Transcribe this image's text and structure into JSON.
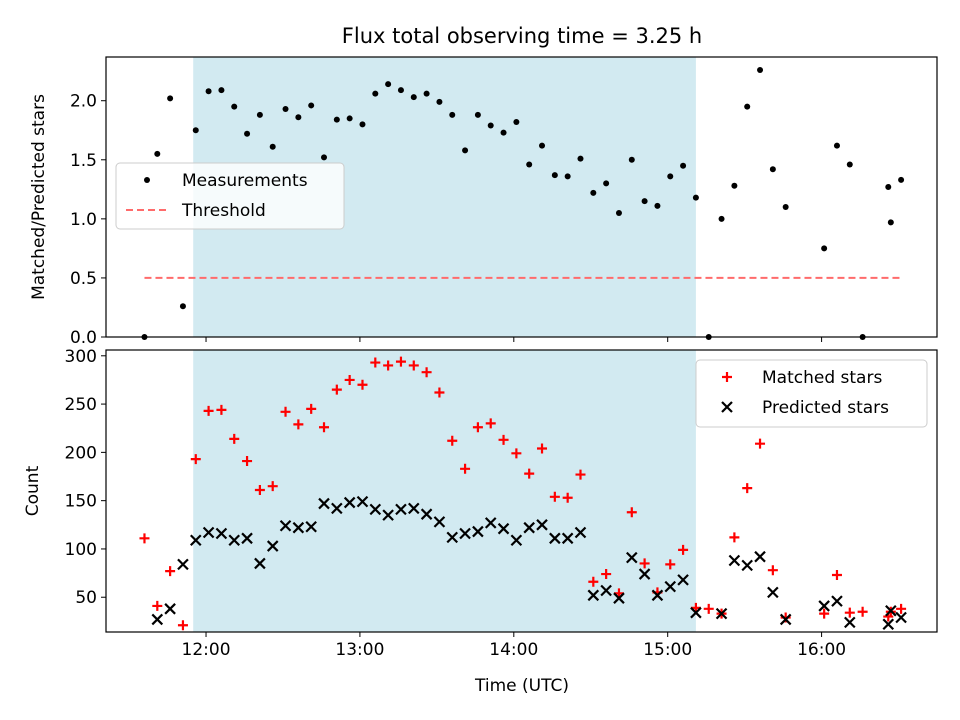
{
  "title": "Flux total observing time = 3.25 h",
  "xlabel": "Time (UTC)",
  "colors": {
    "measurement": "#000000",
    "threshold": "#ff6b6b",
    "span": "#add8e6",
    "matched": "#ff0000",
    "predicted": "#000000"
  },
  "chart_data": [
    {
      "type": "scatter",
      "ylabel": "Matched/Predicted stars",
      "ylim": [
        0,
        2.37
      ],
      "yticks": [
        "0.0",
        "0.5",
        "1.0",
        "1.5",
        "2.0"
      ],
      "xlim": [
        "11:21",
        "16:45"
      ],
      "xticks": [
        "12:00",
        "13:00",
        "14:00",
        "15:00",
        "16:00"
      ],
      "shaded_interval": [
        "11:55",
        "15:11"
      ],
      "legend_loc": "center-left",
      "series": [
        {
          "name": "Measurements",
          "marker": "dot",
          "points": [
            [
              "11:36",
              0.0
            ],
            [
              "11:41",
              1.55
            ],
            [
              "11:46",
              2.02
            ],
            [
              "11:51",
              0.26
            ],
            [
              "11:56",
              1.75
            ],
            [
              "12:01",
              2.08
            ],
            [
              "12:06",
              2.09
            ],
            [
              "12:11",
              1.95
            ],
            [
              "12:16",
              1.72
            ],
            [
              "12:21",
              1.88
            ],
            [
              "12:26",
              1.61
            ],
            [
              "12:31",
              1.93
            ],
            [
              "12:36",
              1.86
            ],
            [
              "12:41",
              1.96
            ],
            [
              "12:46",
              1.52
            ],
            [
              "12:51",
              1.84
            ],
            [
              "12:56",
              1.85
            ],
            [
              "13:01",
              1.8
            ],
            [
              "13:06",
              2.06
            ],
            [
              "13:11",
              2.14
            ],
            [
              "13:16",
              2.09
            ],
            [
              "13:21",
              2.03
            ],
            [
              "13:26",
              2.06
            ],
            [
              "13:31",
              1.99
            ],
            [
              "13:36",
              1.88
            ],
            [
              "13:41",
              1.58
            ],
            [
              "13:46",
              1.88
            ],
            [
              "13:51",
              1.79
            ],
            [
              "13:56",
              1.73
            ],
            [
              "14:01",
              1.82
            ],
            [
              "14:06",
              1.46
            ],
            [
              "14:11",
              1.62
            ],
            [
              "14:16",
              1.37
            ],
            [
              "14:21",
              1.36
            ],
            [
              "14:26",
              1.51
            ],
            [
              "14:31",
              1.22
            ],
            [
              "14:36",
              1.3
            ],
            [
              "14:41",
              1.05
            ],
            [
              "14:46",
              1.5
            ],
            [
              "14:51",
              1.15
            ],
            [
              "14:56",
              1.11
            ],
            [
              "15:01",
              1.36
            ],
            [
              "15:06",
              1.45
            ],
            [
              "15:11",
              1.18
            ],
            [
              "15:16",
              0.0
            ],
            [
              "15:21",
              1.0
            ],
            [
              "15:26",
              1.28
            ],
            [
              "15:31",
              1.95
            ],
            [
              "15:36",
              2.26
            ],
            [
              "15:41",
              1.42
            ],
            [
              "15:46",
              1.1
            ],
            [
              "16:01",
              0.75
            ],
            [
              "16:06",
              1.62
            ],
            [
              "16:11",
              1.46
            ],
            [
              "16:16",
              0.0
            ],
            [
              "16:26",
              1.27
            ],
            [
              "16:27",
              0.97
            ],
            [
              "16:31",
              1.33
            ]
          ]
        },
        {
          "name": "Threshold",
          "style": "dashed-line",
          "points": [
            [
              "11:36",
              0.5
            ],
            [
              "16:31",
              0.5
            ]
          ]
        }
      ]
    },
    {
      "type": "scatter",
      "ylabel": "Count",
      "ylim": [
        14,
        306
      ],
      "yticks": [
        "50",
        "100",
        "150",
        "200",
        "250",
        "300"
      ],
      "xlim": [
        "11:21",
        "16:45"
      ],
      "xticks": [
        "12:00",
        "13:00",
        "14:00",
        "15:00",
        "16:00"
      ],
      "shaded_interval": [
        "11:55",
        "15:11"
      ],
      "legend_loc": "upper-right",
      "series": [
        {
          "name": "Matched stars",
          "marker": "plus",
          "points": [
            [
              "11:36",
              111
            ],
            [
              "11:41",
              41
            ],
            [
              "11:46",
              77
            ],
            [
              "11:51",
              21
            ],
            [
              "11:56",
              193
            ],
            [
              "12:01",
              243
            ],
            [
              "12:06",
              244
            ],
            [
              "12:11",
              214
            ],
            [
              "12:16",
              191
            ],
            [
              "12:21",
              161
            ],
            [
              "12:26",
              165
            ],
            [
              "12:31",
              242
            ],
            [
              "12:36",
              229
            ],
            [
              "12:41",
              245
            ],
            [
              "12:46",
              226
            ],
            [
              "12:51",
              265
            ],
            [
              "12:56",
              275
            ],
            [
              "13:01",
              270
            ],
            [
              "13:06",
              293
            ],
            [
              "13:11",
              290
            ],
            [
              "13:16",
              294
            ],
            [
              "13:21",
              290
            ],
            [
              "13:26",
              283
            ],
            [
              "13:31",
              262
            ],
            [
              "13:36",
              212
            ],
            [
              "13:41",
              183
            ],
            [
              "13:46",
              226
            ],
            [
              "13:51",
              230
            ],
            [
              "13:56",
              213
            ],
            [
              "14:01",
              199
            ],
            [
              "14:06",
              178
            ],
            [
              "14:11",
              204
            ],
            [
              "14:16",
              154
            ],
            [
              "14:21",
              153
            ],
            [
              "14:26",
              177
            ],
            [
              "14:31",
              66
            ],
            [
              "14:36",
              74
            ],
            [
              "14:41",
              54
            ],
            [
              "14:46",
              138
            ],
            [
              "14:51",
              85
            ],
            [
              "14:56",
              55
            ],
            [
              "15:01",
              84
            ],
            [
              "15:06",
              99
            ],
            [
              "15:11",
              39
            ],
            [
              "15:16",
              38
            ],
            [
              "15:21",
              33
            ],
            [
              "15:26",
              112
            ],
            [
              "15:31",
              163
            ],
            [
              "15:36",
              209
            ],
            [
              "15:41",
              78
            ],
            [
              "15:46",
              29
            ],
            [
              "16:01",
              33
            ],
            [
              "16:06",
              73
            ],
            [
              "16:11",
              34
            ],
            [
              "16:16",
              35
            ],
            [
              "16:26",
              30
            ],
            [
              "16:27",
              35
            ],
            [
              "16:31",
              38
            ]
          ]
        },
        {
          "name": "Predicted stars",
          "marker": "x",
          "points": [
            [
              "11:41",
              27
            ],
            [
              "11:46",
              38
            ],
            [
              "11:51",
              84
            ],
            [
              "11:56",
              109
            ],
            [
              "12:01",
              117
            ],
            [
              "12:06",
              116
            ],
            [
              "12:11",
              109
            ],
            [
              "12:16",
              111
            ],
            [
              "12:21",
              85
            ],
            [
              "12:26",
              103
            ],
            [
              "12:31",
              124
            ],
            [
              "12:36",
              122
            ],
            [
              "12:41",
              123
            ],
            [
              "12:46",
              147
            ],
            [
              "12:51",
              142
            ],
            [
              "12:56",
              148
            ],
            [
              "13:01",
              149
            ],
            [
              "13:06",
              141
            ],
            [
              "13:11",
              135
            ],
            [
              "13:16",
              141
            ],
            [
              "13:21",
              142
            ],
            [
              "13:26",
              136
            ],
            [
              "13:31",
              128
            ],
            [
              "13:36",
              112
            ],
            [
              "13:41",
              116
            ],
            [
              "13:46",
              118
            ],
            [
              "13:51",
              127
            ],
            [
              "13:56",
              121
            ],
            [
              "14:01",
              109
            ],
            [
              "14:06",
              122
            ],
            [
              "14:11",
              125
            ],
            [
              "14:16",
              111
            ],
            [
              "14:21",
              111
            ],
            [
              "14:26",
              117
            ],
            [
              "14:31",
              52
            ],
            [
              "14:36",
              57
            ],
            [
              "14:41",
              49
            ],
            [
              "14:46",
              91
            ],
            [
              "14:51",
              74
            ],
            [
              "14:56",
              52
            ],
            [
              "15:01",
              61
            ],
            [
              "15:06",
              68
            ],
            [
              "15:11",
              34
            ],
            [
              "15:21",
              33
            ],
            [
              "15:26",
              88
            ],
            [
              "15:31",
              83
            ],
            [
              "15:36",
              92
            ],
            [
              "15:41",
              55
            ],
            [
              "15:46",
              27
            ],
            [
              "16:01",
              41
            ],
            [
              "16:06",
              46
            ],
            [
              "16:11",
              24
            ],
            [
              "16:26",
              22
            ],
            [
              "16:27",
              36
            ],
            [
              "16:31",
              29
            ]
          ]
        }
      ]
    }
  ]
}
